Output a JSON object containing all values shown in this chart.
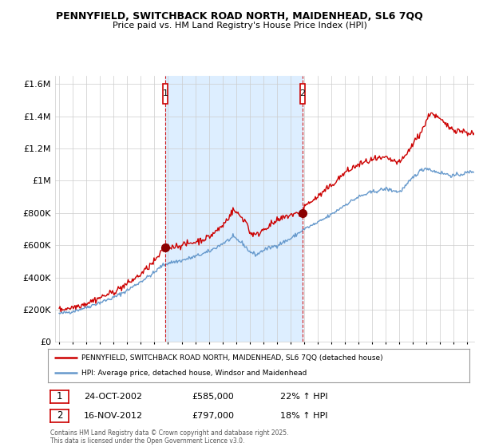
{
  "title1": "PENNYFIELD, SWITCHBACK ROAD NORTH, MAIDENHEAD, SL6 7QQ",
  "title2": "Price paid vs. HM Land Registry's House Price Index (HPI)",
  "legend_label1": "PENNYFIELD, SWITCHBACK ROAD NORTH, MAIDENHEAD, SL6 7QQ (detached house)",
  "legend_label2": "HPI: Average price, detached house, Windsor and Maidenhead",
  "transaction1_label": "1",
  "transaction1_date": "24-OCT-2002",
  "transaction1_price": "£585,000",
  "transaction1_hpi": "22% ↑ HPI",
  "transaction2_label": "2",
  "transaction2_date": "16-NOV-2012",
  "transaction2_price": "£797,000",
  "transaction2_hpi": "18% ↑ HPI",
  "footer": "Contains HM Land Registry data © Crown copyright and database right 2025.\nThis data is licensed under the Open Government Licence v3.0.",
  "line1_color": "#cc0000",
  "line2_color": "#6699cc",
  "marker1_color": "#8b0000",
  "marker2_color": "#8b0000",
  "vline_color": "#cc0000",
  "shade_color": "#ddeeff",
  "background_color": "#ffffff",
  "grid_color": "#cccccc",
  "ylim": [
    0,
    1650000
  ],
  "yticks": [
    0,
    200000,
    400000,
    600000,
    800000,
    1000000,
    1200000,
    1400000,
    1600000
  ],
  "ytick_labels": [
    "£0",
    "£200K",
    "£400K",
    "£600K",
    "£800K",
    "£1M",
    "£1.2M",
    "£1.4M",
    "£1.6M"
  ],
  "xlim_start": 1994.7,
  "xlim_end": 2025.5,
  "transaction1_x": 2002.81,
  "transaction1_y": 585000,
  "transaction2_x": 2012.88,
  "transaction2_y": 797000
}
